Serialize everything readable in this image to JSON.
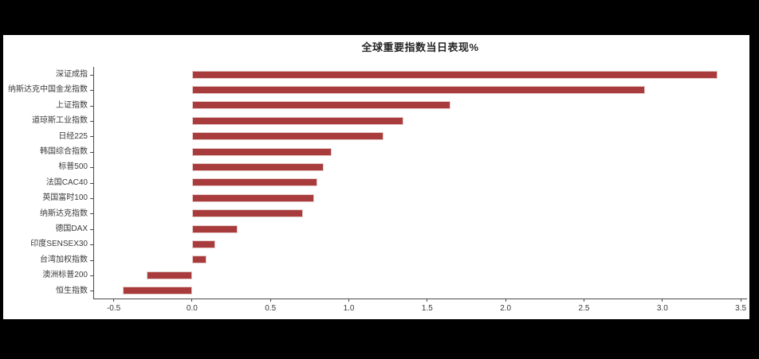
{
  "chart_data": {
    "type": "bar",
    "orientation": "horizontal",
    "title": "全球重要指数当日表现%",
    "unit": "%",
    "categories": [
      "深证成指",
      "纳斯达克中国金龙指数",
      "上证指数",
      "道琼斯工业指数",
      "日经225",
      "韩国综合指数",
      "标普500",
      "法国CAC40",
      "英国富时100",
      "纳斯达克指数",
      "德国DAX",
      "印度SENSEX30",
      "台湾加权指数",
      "澳洲标普200",
      "恒生指数"
    ],
    "values": [
      3.35,
      2.89,
      1.65,
      1.35,
      1.22,
      0.89,
      0.84,
      0.8,
      0.78,
      0.71,
      0.29,
      0.15,
      0.09,
      -0.29,
      -0.44
    ],
    "xlim": [
      -0.63,
      3.54
    ],
    "x_tick_values": [
      -0.5,
      0.0,
      0.5,
      1.0,
      1.5,
      2.0,
      2.5,
      3.0,
      3.5
    ],
    "x_tick_labels": [
      "-0.5",
      "0.0",
      "0.5",
      "1.0",
      "1.5",
      "2.0",
      "2.5",
      "3.0",
      "3.5"
    ],
    "grid": false,
    "legend": "none",
    "colors": {
      "bar_fill": "#A83B3B",
      "bar_edge": "#E6CACA",
      "axis_line": "#4A4A4A",
      "tick_text": "#3A3A3A",
      "title_text": "#262626",
      "figure_background": "#FFFFFF",
      "page_background": "#000000"
    }
  }
}
